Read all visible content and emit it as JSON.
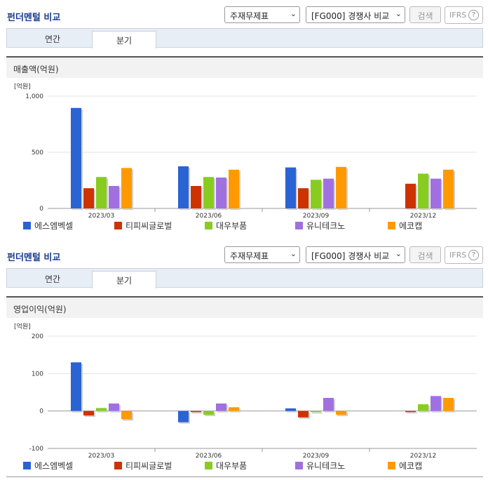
{
  "sections": [
    {
      "title": "펀더멘털 비교",
      "select_statement": "주재무제표",
      "select_compare": "[FG000] 경쟁사 비교",
      "search_label": "검색",
      "ifrs_label": "IFRS",
      "help_glyph": "?",
      "tabs": [
        {
          "label": "연간",
          "active": false
        },
        {
          "label": "분기",
          "active": true
        }
      ],
      "subhead": "매출액(억원)"
    },
    {
      "title": "펀더멘털 비교",
      "select_statement": "주재무제표",
      "select_compare": "[FG000] 경쟁사 비교",
      "search_label": "검색",
      "ifrs_label": "IFRS",
      "help_glyph": "?",
      "tabs": [
        {
          "label": "연간",
          "active": false
        },
        {
          "label": "분기",
          "active": true
        }
      ],
      "subhead": "영업이익(억원)"
    }
  ],
  "chart_data": [
    {
      "type": "bar",
      "unit_label": "[억원]",
      "categories": [
        "2023/03",
        "2023/06",
        "2023/09",
        "2023/12"
      ],
      "ylim": [
        0,
        1000
      ],
      "yticks": [
        0,
        500,
        1000
      ],
      "ytick_labels": [
        "0",
        "500",
        "1,000"
      ],
      "series": [
        {
          "name": "에스엠벡셀",
          "color": "#2a63d4",
          "values": [
            895,
            375,
            365,
            null
          ]
        },
        {
          "name": "티피씨글로벌",
          "color": "#cc3300",
          "values": [
            180,
            200,
            180,
            220
          ]
        },
        {
          "name": "대우부품",
          "color": "#88cc22",
          "values": [
            280,
            280,
            255,
            310
          ]
        },
        {
          "name": "유니테크노",
          "color": "#a070e0",
          "values": [
            200,
            275,
            265,
            265
          ]
        },
        {
          "name": "에코캡",
          "color": "#ff9900",
          "values": [
            360,
            345,
            370,
            345
          ]
        }
      ]
    },
    {
      "type": "bar",
      "unit_label": "[억원]",
      "categories": [
        "2023/03",
        "2023/06",
        "2023/09",
        "2023/12"
      ],
      "ylim": [
        -100,
        200
      ],
      "yticks": [
        -100,
        0,
        100,
        200
      ],
      "ytick_labels": [
        "-100",
        "0",
        "100",
        "200"
      ],
      "series": [
        {
          "name": "에스엠벡셀",
          "color": "#2a63d4",
          "values": [
            130,
            -30,
            7,
            null
          ]
        },
        {
          "name": "티피씨글로벌",
          "color": "#cc3300",
          "values": [
            -12,
            -3,
            -17,
            -3
          ]
        },
        {
          "name": "대우부품",
          "color": "#88cc22",
          "values": [
            8,
            -10,
            -3,
            18
          ]
        },
        {
          "name": "유니테크노",
          "color": "#a070e0",
          "values": [
            20,
            20,
            35,
            40
          ]
        },
        {
          "name": "에코캡",
          "color": "#ff9900",
          "values": [
            -22,
            10,
            -10,
            35
          ]
        }
      ]
    }
  ]
}
